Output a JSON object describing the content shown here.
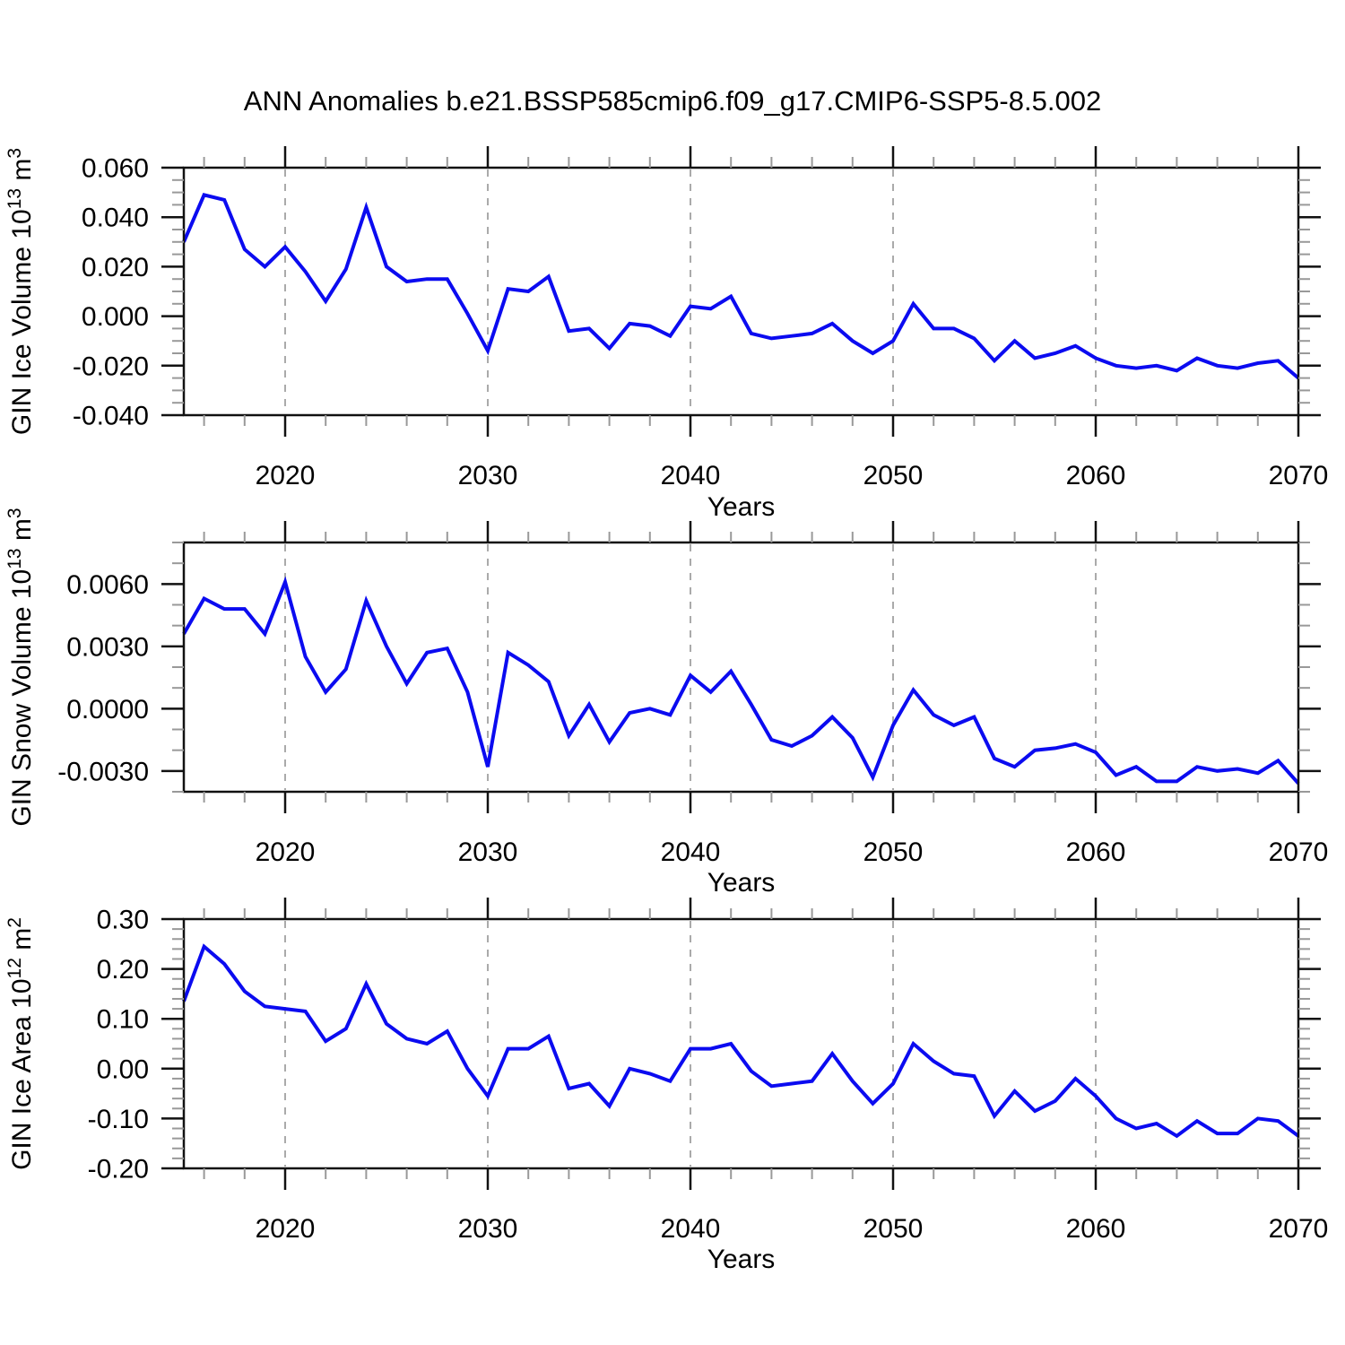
{
  "title": "ANN Anomalies b.e21.BSSP585cmip6.f09_g17.CMIP6-SSP5-8.5.002",
  "chart_data": {
    "type": "line",
    "title": "ANN Anomalies b.e21.BSSP585cmip6.f09_g17.CMIP6-SSP5-8.5.002",
    "xlabel": "Years",
    "legend": "none",
    "grid": "vertical-dashed-at-decades",
    "x_axis": {
      "range": [
        2015,
        2070
      ],
      "major_ticks": [
        2020,
        2030,
        2040,
        2050,
        2060,
        2070
      ],
      "tick_labels": [
        "2020",
        "2030",
        "2040",
        "2050",
        "2060",
        "2070"
      ],
      "minor_step_years": 2,
      "grid_years": [
        2020,
        2030,
        2040,
        2050,
        2060
      ]
    },
    "years": [
      2015,
      2016,
      2017,
      2018,
      2019,
      2020,
      2021,
      2022,
      2023,
      2024,
      2025,
      2026,
      2027,
      2028,
      2029,
      2030,
      2031,
      2032,
      2033,
      2034,
      2035,
      2036,
      2037,
      2038,
      2039,
      2040,
      2041,
      2042,
      2043,
      2044,
      2045,
      2046,
      2047,
      2048,
      2049,
      2050,
      2051,
      2052,
      2053,
      2054,
      2055,
      2056,
      2057,
      2058,
      2059,
      2060,
      2061,
      2062,
      2063,
      2064,
      2065,
      2066,
      2067,
      2068,
      2069,
      2070
    ],
    "style": {
      "line_color": "#0b0bf0",
      "frame_color": "#111111",
      "major_tick_color": "#111111",
      "minor_tick_color": "#999999",
      "grid_color": "#aaaaaa",
      "text_color": "#000000"
    },
    "panels": [
      {
        "id": "gin-ice-volume",
        "ylabel_text": "GIN Ice Volume 10^13 m^3",
        "ylabel": {
          "prefix": "GIN Ice Volume 10",
          "exp": "13",
          "unit": " m",
          "unit_exp": "3"
        },
        "ylim": [
          -0.04,
          0.06
        ],
        "y_major_ticks": [
          0.06,
          0.04,
          0.02,
          0.0,
          -0.02,
          -0.04
        ],
        "y_tick_labels": [
          "0.060",
          "0.040",
          "0.020",
          "0.000",
          "-0.020",
          "-0.040"
        ],
        "y_minor_step": 0.005,
        "values": [
          0.03,
          0.049,
          0.047,
          0.027,
          0.02,
          0.028,
          0.018,
          0.006,
          0.019,
          0.044,
          0.02,
          0.014,
          0.015,
          0.015,
          0.001,
          -0.014,
          0.011,
          0.01,
          0.016,
          -0.006,
          -0.005,
          -0.013,
          -0.003,
          -0.004,
          -0.008,
          0.004,
          0.003,
          0.008,
          -0.007,
          -0.009,
          -0.008,
          -0.007,
          -0.003,
          -0.01,
          -0.015,
          -0.01,
          0.005,
          -0.005,
          -0.005,
          -0.009,
          -0.018,
          -0.01,
          -0.017,
          -0.015,
          -0.012,
          -0.017,
          -0.02,
          -0.021,
          -0.02,
          -0.022,
          -0.017,
          -0.02,
          -0.021,
          -0.019,
          -0.018,
          -0.025
        ]
      },
      {
        "id": "gin-snow-volume",
        "ylabel_text": "GIN Snow Volume 10^13 m^3",
        "ylabel": {
          "prefix": "GIN Snow Volume 10",
          "exp": "13",
          "unit": " m",
          "unit_exp": "3"
        },
        "ylim": [
          -0.004,
          0.008
        ],
        "y_major_ticks": [
          0.006,
          0.003,
          0.0,
          -0.003
        ],
        "y_tick_labels": [
          "0.0060",
          "0.0030",
          "0.0000",
          "-0.0030"
        ],
        "y_minor_step": 0.001,
        "values": [
          0.0036,
          0.0053,
          0.0048,
          0.0048,
          0.0036,
          0.0061,
          0.0025,
          0.0008,
          0.0019,
          0.0052,
          0.003,
          0.0012,
          0.0027,
          0.0029,
          0.0008,
          -0.0028,
          0.0027,
          0.0021,
          0.0013,
          -0.0013,
          0.0002,
          -0.0016,
          -0.0002,
          0.0,
          -0.0003,
          0.0016,
          0.0008,
          0.0018,
          0.0002,
          -0.0015,
          -0.0018,
          -0.0013,
          -0.0004,
          -0.0014,
          -0.0033,
          -0.0008,
          0.0009,
          -0.0003,
          -0.0008,
          -0.0004,
          -0.0024,
          -0.0028,
          -0.002,
          -0.0019,
          -0.0017,
          -0.0021,
          -0.0032,
          -0.0028,
          -0.0035,
          -0.0035,
          -0.0028,
          -0.003,
          -0.0029,
          -0.0031,
          -0.0025,
          -0.0036
        ]
      },
      {
        "id": "gin-ice-area",
        "ylabel_text": "GIN Ice Area 10^12 m^2",
        "ylabel": {
          "prefix": "GIN Ice Area 10",
          "exp": "12",
          "unit": " m",
          "unit_exp": "2"
        },
        "ylim": [
          -0.2,
          0.3
        ],
        "y_major_ticks": [
          0.3,
          0.2,
          0.1,
          0.0,
          -0.1,
          -0.2
        ],
        "y_tick_labels": [
          "0.30",
          "0.20",
          "0.10",
          "0.00",
          "-0.10",
          "-0.20"
        ],
        "y_minor_step": 0.02,
        "values": [
          0.135,
          0.245,
          0.21,
          0.155,
          0.125,
          0.12,
          0.115,
          0.055,
          0.08,
          0.17,
          0.09,
          0.06,
          0.05,
          0.075,
          0.0,
          -0.055,
          0.04,
          0.04,
          0.065,
          -0.04,
          -0.03,
          -0.075,
          0.0,
          -0.01,
          -0.025,
          0.04,
          0.04,
          0.05,
          -0.005,
          -0.035,
          -0.03,
          -0.025,
          0.03,
          -0.025,
          -0.07,
          -0.03,
          0.05,
          0.015,
          -0.01,
          -0.015,
          -0.095,
          -0.045,
          -0.085,
          -0.065,
          -0.02,
          -0.055,
          -0.1,
          -0.12,
          -0.11,
          -0.135,
          -0.105,
          -0.13,
          -0.13,
          -0.1,
          -0.105,
          -0.135
        ]
      }
    ]
  }
}
